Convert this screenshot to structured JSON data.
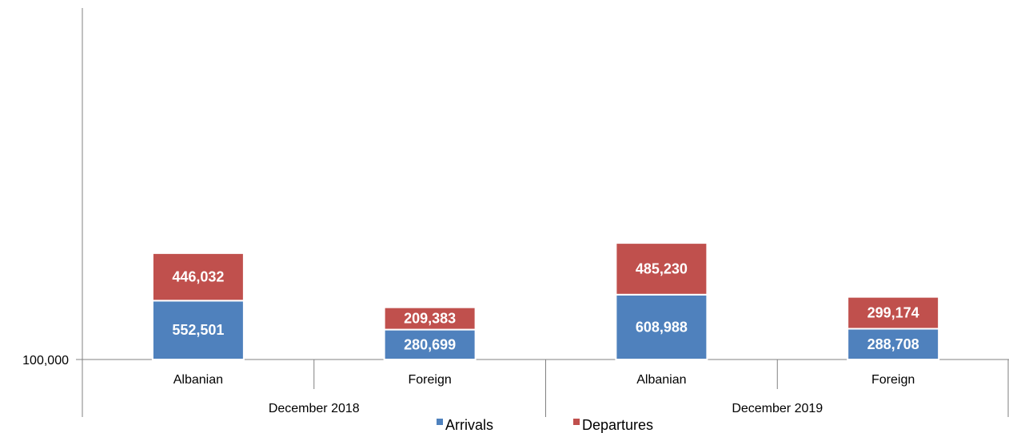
{
  "chart_data": {
    "type": "bar",
    "stacked": true,
    "categories": [
      "Albanian",
      "Foreign",
      "Albanian",
      "Foreign"
    ],
    "groups": [
      {
        "label": "December 2018",
        "categories": [
          "Albanian",
          "Foreign"
        ]
      },
      {
        "label": "December  2019",
        "categories": [
          "Albanian",
          "Foreign"
        ]
      }
    ],
    "series": [
      {
        "name": "Arrivals",
        "color": "#4F81BD",
        "values": [
          552501,
          280699,
          608988,
          288708
        ],
        "labels": [
          "552,501",
          "280,699",
          "608,988",
          "288,708"
        ]
      },
      {
        "name": "Departures",
        "color": "#C0504D",
        "values": [
          446032,
          209383,
          485230,
          299174
        ],
        "labels": [
          "446,032",
          "209,383",
          "485,230",
          "299,174"
        ]
      }
    ],
    "y_tick_labels": [
      "100,000"
    ],
    "ylim": [
      100000,
      3400000
    ],
    "legend_position": "bottom",
    "grid": false,
    "title": "",
    "xlabel": "",
    "ylabel": ""
  }
}
